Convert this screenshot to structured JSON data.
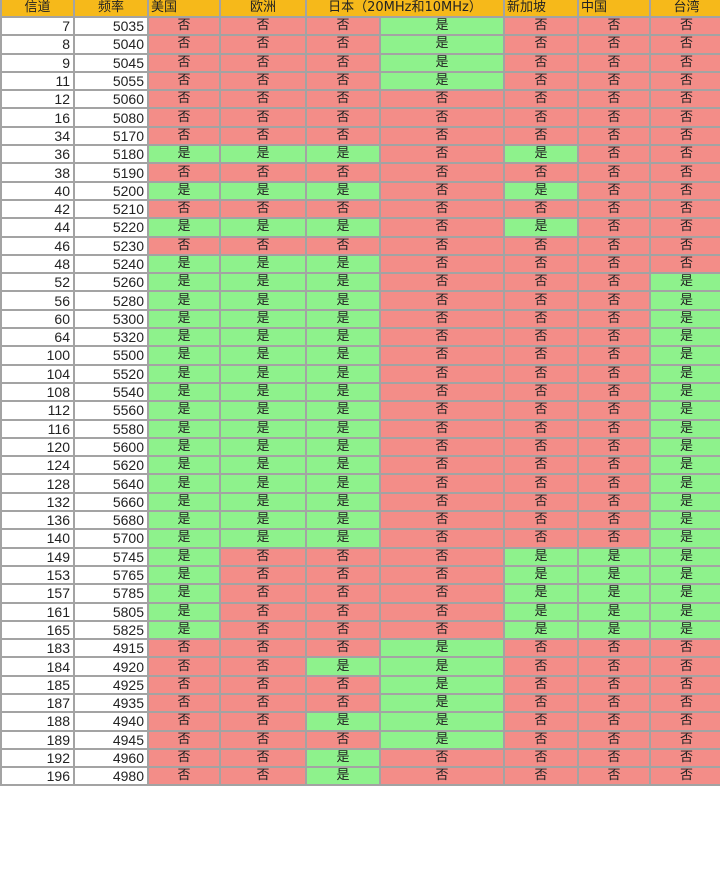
{
  "colors": {
    "header": "#f6b91a",
    "yes": "#8ef28c",
    "no": "#f38d88",
    "grid": "#a3a3a3"
  },
  "headers": [
    "信道",
    "频率",
    "美国",
    "欧洲",
    "日本（20MHz和10MHz）",
    "新加坡",
    "中国",
    "台湾"
  ],
  "rows": [
    [
      "7",
      "5035",
      "否",
      "否",
      "否",
      "是",
      "否",
      "否",
      "否"
    ],
    [
      "8",
      "5040",
      "否",
      "否",
      "否",
      "是",
      "否",
      "否",
      "否"
    ],
    [
      "9",
      "5045",
      "否",
      "否",
      "否",
      "是",
      "否",
      "否",
      "否"
    ],
    [
      "11",
      "5055",
      "否",
      "否",
      "否",
      "是",
      "否",
      "否",
      "否"
    ],
    [
      "12",
      "5060",
      "否",
      "否",
      "否",
      "否",
      "否",
      "否",
      "否"
    ],
    [
      "16",
      "5080",
      "否",
      "否",
      "否",
      "否",
      "否",
      "否",
      "否"
    ],
    [
      "34",
      "5170",
      "否",
      "否",
      "否",
      "否",
      "否",
      "否",
      "否"
    ],
    [
      "36",
      "5180",
      "是",
      "是",
      "是",
      "否",
      "是",
      "否",
      "否"
    ],
    [
      "38",
      "5190",
      "否",
      "否",
      "否",
      "否",
      "否",
      "否",
      "否"
    ],
    [
      "40",
      "5200",
      "是",
      "是",
      "是",
      "否",
      "是",
      "否",
      "否"
    ],
    [
      "42",
      "5210",
      "否",
      "否",
      "否",
      "否",
      "否",
      "否",
      "否"
    ],
    [
      "44",
      "5220",
      "是",
      "是",
      "是",
      "否",
      "是",
      "否",
      "否"
    ],
    [
      "46",
      "5230",
      "否",
      "否",
      "否",
      "否",
      "否",
      "否",
      "否"
    ],
    [
      "48",
      "5240",
      "是",
      "是",
      "是",
      "否",
      "否",
      "否",
      "否"
    ],
    [
      "52",
      "5260",
      "是",
      "是",
      "是",
      "否",
      "否",
      "否",
      "是"
    ],
    [
      "56",
      "5280",
      "是",
      "是",
      "是",
      "否",
      "否",
      "否",
      "是"
    ],
    [
      "60",
      "5300",
      "是",
      "是",
      "是",
      "否",
      "否",
      "否",
      "是"
    ],
    [
      "64",
      "5320",
      "是",
      "是",
      "是",
      "否",
      "否",
      "否",
      "是"
    ],
    [
      "100",
      "5500",
      "是",
      "是",
      "是",
      "否",
      "否",
      "否",
      "是"
    ],
    [
      "104",
      "5520",
      "是",
      "是",
      "是",
      "否",
      "否",
      "否",
      "是"
    ],
    [
      "108",
      "5540",
      "是",
      "是",
      "是",
      "否",
      "否",
      "否",
      "是"
    ],
    [
      "112",
      "5560",
      "是",
      "是",
      "是",
      "否",
      "否",
      "否",
      "是"
    ],
    [
      "116",
      "5580",
      "是",
      "是",
      "是",
      "否",
      "否",
      "否",
      "是"
    ],
    [
      "120",
      "5600",
      "是",
      "是",
      "是",
      "否",
      "否",
      "否",
      "是"
    ],
    [
      "124",
      "5620",
      "是",
      "是",
      "是",
      "否",
      "否",
      "否",
      "是"
    ],
    [
      "128",
      "5640",
      "是",
      "是",
      "是",
      "否",
      "否",
      "否",
      "是"
    ],
    [
      "132",
      "5660",
      "是",
      "是",
      "是",
      "否",
      "否",
      "否",
      "是"
    ],
    [
      "136",
      "5680",
      "是",
      "是",
      "是",
      "否",
      "否",
      "否",
      "是"
    ],
    [
      "140",
      "5700",
      "是",
      "是",
      "是",
      "否",
      "否",
      "否",
      "是"
    ],
    [
      "149",
      "5745",
      "是",
      "否",
      "否",
      "否",
      "是",
      "是",
      "是"
    ],
    [
      "153",
      "5765",
      "是",
      "否",
      "否",
      "否",
      "是",
      "是",
      "是"
    ],
    [
      "157",
      "5785",
      "是",
      "否",
      "否",
      "否",
      "是",
      "是",
      "是"
    ],
    [
      "161",
      "5805",
      "是",
      "否",
      "否",
      "否",
      "是",
      "是",
      "是"
    ],
    [
      "165",
      "5825",
      "是",
      "否",
      "否",
      "否",
      "是",
      "是",
      "是"
    ],
    [
      "183",
      "4915",
      "否",
      "否",
      "否",
      "是",
      "否",
      "否",
      "否"
    ],
    [
      "184",
      "4920",
      "否",
      "否",
      "是",
      "是",
      "否",
      "否",
      "否"
    ],
    [
      "185",
      "4925",
      "否",
      "否",
      "否",
      "是",
      "否",
      "否",
      "否"
    ],
    [
      "187",
      "4935",
      "否",
      "否",
      "否",
      "是",
      "否",
      "否",
      "否"
    ],
    [
      "188",
      "4940",
      "否",
      "否",
      "是",
      "是",
      "否",
      "否",
      "否"
    ],
    [
      "189",
      "4945",
      "否",
      "否",
      "否",
      "是",
      "否",
      "否",
      "否"
    ],
    [
      "192",
      "4960",
      "否",
      "否",
      "是",
      "否",
      "否",
      "否",
      "否"
    ],
    [
      "196",
      "4980",
      "否",
      "否",
      "是",
      "否",
      "否",
      "否",
      "否"
    ]
  ]
}
